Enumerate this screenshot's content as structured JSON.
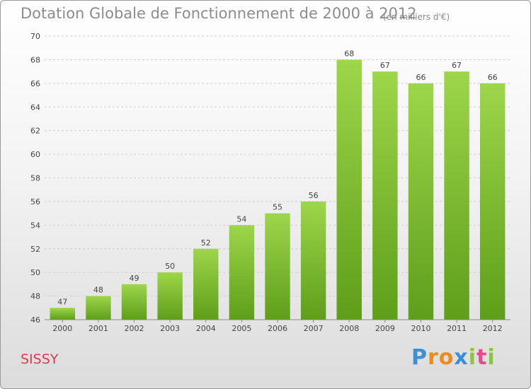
{
  "header": {
    "title": "Dotation Globale de Fonctionnement de 2000 à 2012",
    "subtitle": "(en milliers d'€)"
  },
  "footer": {
    "commune": "SISSY",
    "logo_letters": [
      "P",
      "r",
      "o",
      "x",
      "i",
      "t",
      "i"
    ],
    "logo_colors": [
      "#3a8fd6",
      "#f08a1c",
      "#f08a1c",
      "#3a8fd6",
      "#8cc63f",
      "#e64b8b",
      "#8cc63f"
    ]
  },
  "chart_data": {
    "type": "bar",
    "title": "Dotation Globale de Fonctionnement de 2000 à 2012",
    "subtitle": "(en milliers d'€)",
    "xlabel": "",
    "ylabel": "",
    "categories": [
      "2000",
      "2001",
      "2002",
      "2003",
      "2004",
      "2005",
      "2006",
      "2007",
      "2008",
      "2009",
      "2010",
      "2011",
      "2012"
    ],
    "values": [
      47,
      48,
      49,
      50,
      52,
      54,
      55,
      56,
      68,
      67,
      66,
      67,
      66
    ],
    "data_labels": [
      "47",
      "48",
      "49",
      "50",
      "52",
      "54",
      "55",
      "56",
      "68",
      "67",
      "66",
      "67",
      "66"
    ],
    "ylim": [
      46,
      70
    ],
    "yticks": [
      46,
      48,
      50,
      52,
      54,
      56,
      58,
      60,
      62,
      64,
      66,
      68,
      70
    ],
    "ytick_labels": [
      "46",
      "48",
      "50",
      "52",
      "54",
      "56",
      "58",
      "60",
      "62",
      "64",
      "66",
      "68",
      "70"
    ],
    "grid": true,
    "legend": "none",
    "bar_color": "#7cc02f"
  }
}
